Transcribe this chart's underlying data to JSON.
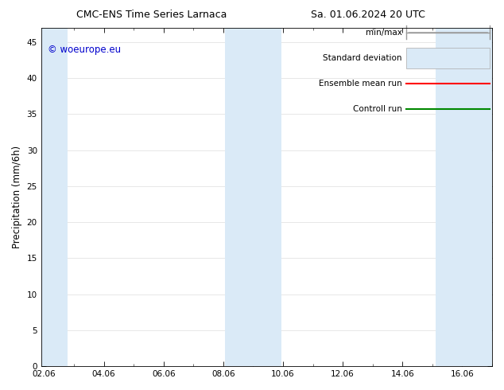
{
  "title_left": "CMC-ENS Time Series Larnaca",
  "title_right": "Sa. 01.06.2024 20 UTC",
  "ylabel": "Precipitation (mm/6h)",
  "xlabel_ticks": [
    "02.06",
    "04.06",
    "06.06",
    "08.06",
    "10.06",
    "12.06",
    "14.06",
    "16.06"
  ],
  "x_tick_positions": [
    0,
    2,
    4,
    6,
    8,
    10,
    12,
    14
  ],
  "xlim": [
    -0.1,
    15.0
  ],
  "ylim": [
    0,
    47
  ],
  "yticks": [
    0,
    5,
    10,
    15,
    20,
    25,
    30,
    35,
    40,
    45
  ],
  "background_color": "#ffffff",
  "plot_bg_color": "#ffffff",
  "shaded_regions": [
    {
      "x_start": -0.1,
      "x_end": 0.8,
      "color": "#daeaf7"
    },
    {
      "x_start": 6.05,
      "x_end": 7.95,
      "color": "#daeaf7"
    },
    {
      "x_start": 13.1,
      "x_end": 15.0,
      "color": "#daeaf7"
    }
  ],
  "legend_labels": [
    "min/max",
    "Standard deviation",
    "Ensemble mean run",
    "Controll run"
  ],
  "legend_line_colors": [
    "#999999",
    "#bbccdd",
    "#ff0000",
    "#008800"
  ],
  "watermark_text": "© woeurope.eu",
  "watermark_color": "#0000cc",
  "title_fontsize": 9,
  "tick_label_fontsize": 7.5,
  "ylabel_fontsize": 8.5,
  "legend_fontsize": 7.5
}
